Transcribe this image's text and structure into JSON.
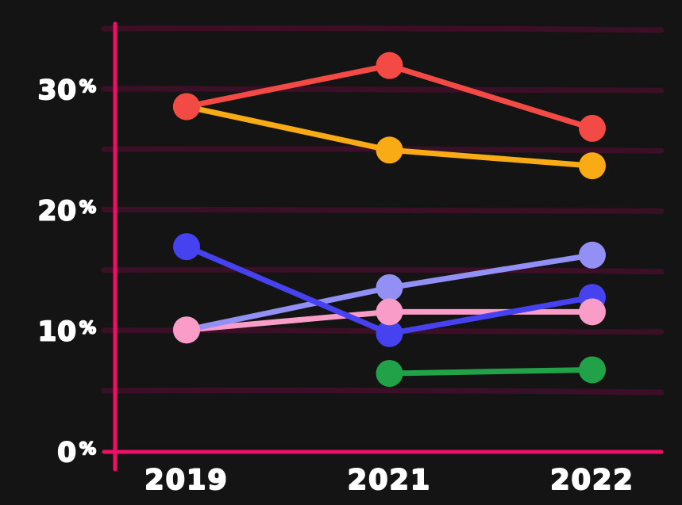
{
  "page": {
    "background_color": "#141414",
    "text_color": "#ffffff"
  },
  "chart_data": {
    "type": "line",
    "title": "",
    "categories": [
      "2019",
      "2021",
      "2022"
    ],
    "x": [
      2019,
      2021,
      2022
    ],
    "series": [
      {
        "name": "red",
        "color": "#f34a46",
        "values": [
          28.6,
          32.0,
          26.8
        ]
      },
      {
        "name": "yellow",
        "color": "#f9ab15",
        "values": [
          28.6,
          25.0,
          23.7
        ]
      },
      {
        "name": "blue",
        "color": "#4742ef",
        "values": [
          17.0,
          9.8,
          12.8
        ]
      },
      {
        "name": "periwinkle",
        "color": "#928ff5",
        "values": [
          10.1,
          13.6,
          16.3
        ]
      },
      {
        "name": "pink",
        "color": "#fa9cc8",
        "values": [
          10.1,
          11.6,
          11.6
        ]
      },
      {
        "name": "green",
        "color": "#21a249",
        "values": [
          null,
          6.5,
          6.8
        ]
      }
    ],
    "y_ticks": [
      {
        "value": 0,
        "label": "0",
        "suffix": "%"
      },
      {
        "value": 10,
        "label": "10",
        "suffix": "%"
      },
      {
        "value": 20,
        "label": "20",
        "suffix": "%"
      },
      {
        "value": 30,
        "label": "30",
        "suffix": "%"
      }
    ],
    "grid_values": [
      5,
      10,
      15,
      20,
      25,
      30,
      35
    ],
    "ylim": [
      0,
      35
    ],
    "ylabel": "",
    "xlabel": "",
    "legend": "none",
    "grid": "horizontal",
    "axis_color": "#ec1167",
    "grid_color": "#3b0f26",
    "label_color": "#ffffff",
    "marker": "circle"
  }
}
